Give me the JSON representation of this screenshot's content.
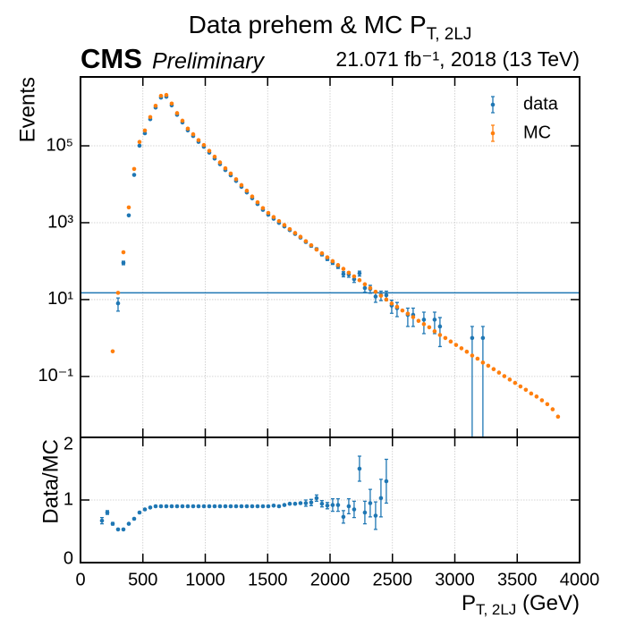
{
  "chart_data": [
    {
      "type": "scatter",
      "title": "Data prehem & MC P",
      "title_subscript": "T, 2LJ",
      "cms_label": "CMS",
      "cms_status": "Preliminary",
      "lumi_text": "21.071 fb⁻¹, 2018 (13 TeV)",
      "ylabel": "Events",
      "log_y": true,
      "grid": true,
      "legend": "upper right",
      "xlim": [
        0,
        4000
      ],
      "ylim": [
        0.0026,
        6200000
      ],
      "yticks": [
        {
          "value": 0.1,
          "label": "10⁻¹"
        },
        {
          "value": 10,
          "label": "10¹"
        },
        {
          "value": 1000,
          "label": "10³"
        },
        {
          "value": 100000,
          "label": "10⁵"
        }
      ],
      "hline": 15,
      "hline_color": "#1f77b4",
      "series": [
        {
          "name": "data",
          "color": "#1f77b4",
          "x": [
            258,
            301,
            344,
            387,
            430,
            473,
            516,
            559,
            602,
            645,
            688,
            731,
            774,
            817,
            860,
            903,
            946,
            989,
            1032,
            1075,
            1118,
            1161,
            1204,
            1247,
            1290,
            1333,
            1376,
            1419,
            1462,
            1505,
            1548,
            1591,
            1634,
            1677,
            1720,
            1763,
            1806,
            1849,
            1892,
            1935,
            1978,
            2021,
            2064,
            2107,
            2150,
            2193,
            2236,
            2279,
            2322,
            2365,
            2408,
            2451,
            2494,
            2537,
            2580,
            2623,
            2666,
            2709,
            2752,
            2795,
            2838,
            2881,
            2924,
            2967,
            3010,
            3053,
            3096,
            3139,
            3182,
            3225,
            3268,
            3311,
            3354,
            3397,
            3440,
            3483,
            3526,
            3569,
            3612,
            3655,
            3698,
            3741,
            3784,
            3827
          ],
          "values": [
            null,
            8,
            90,
            1550,
            17500,
            101000,
            212000,
            493000,
            990000,
            1800000,
            1890000,
            1130000,
            640000,
            405000,
            252000,
            180000,
            127000,
            94500,
            66600,
            46800,
            33300,
            23400,
            17100,
            12200,
            8550,
            6120,
            4320,
            3060,
            2160,
            1620,
            1270,
            990,
            800,
            640,
            510,
            410,
            315,
            250,
            205,
            150,
            115,
            92,
            73,
            46,
            45,
            34,
            48,
            20,
            19,
            12,
            13,
            13,
            7,
            6,
            null,
            4,
            4,
            null,
            3,
            null,
            3,
            2,
            null,
            null,
            null,
            null,
            null,
            1,
            null,
            1,
            null,
            null,
            null,
            null,
            null,
            null,
            null,
            null,
            null,
            null,
            null,
            null,
            null,
            null
          ],
          "errors": [
            null,
            3,
            9.5,
            39,
            132,
            318,
            460,
            700,
            995,
            1340,
            1370,
            1060,
            800,
            636,
            502,
            424,
            356,
            307,
            258,
            216,
            182,
            153,
            131,
            110,
            92,
            78,
            66,
            55,
            46,
            40,
            36,
            31,
            28,
            25,
            23,
            20,
            18,
            16,
            14,
            12,
            11,
            10,
            8.5,
            7,
            7,
            6,
            7,
            4.5,
            4.4,
            3.5,
            3.6,
            3.6,
            2.6,
            2.4,
            null,
            2,
            2,
            null,
            1.7,
            null,
            1.7,
            1.4,
            null,
            null,
            null,
            null,
            null,
            1,
            null,
            1,
            null,
            null,
            null,
            null,
            null,
            null,
            null,
            null,
            null,
            null,
            null,
            null,
            null,
            null
          ]
        },
        {
          "name": "MC",
          "color": "#ff7f0e",
          "x": [
            258,
            301,
            344,
            387,
            430,
            473,
            516,
            559,
            602,
            645,
            688,
            731,
            774,
            817,
            860,
            903,
            946,
            989,
            1032,
            1075,
            1118,
            1161,
            1204,
            1247,
            1290,
            1333,
            1376,
            1419,
            1462,
            1505,
            1548,
            1591,
            1634,
            1677,
            1720,
            1763,
            1806,
            1849,
            1892,
            1935,
            1978,
            2021,
            2064,
            2107,
            2150,
            2193,
            2236,
            2279,
            2322,
            2365,
            2408,
            2451,
            2494,
            2537,
            2580,
            2623,
            2666,
            2709,
            2752,
            2795,
            2838,
            2881,
            2924,
            2967,
            3010,
            3053,
            3096,
            3139,
            3182,
            3225,
            3268,
            3311,
            3354,
            3397,
            3440,
            3483,
            3526,
            3569,
            3612,
            3655,
            3698,
            3741,
            3784,
            3827
          ],
          "values": [
            0.45,
            15,
            170,
            2500,
            25000,
            126000,
            250000,
            560000,
            1100000,
            2000000,
            2100000,
            1260000,
            710000,
            450000,
            280000,
            200000,
            141000,
            105000,
            74000,
            52000,
            37000,
            26000,
            19000,
            13500,
            9500,
            6800,
            4800,
            3400,
            2400,
            1800,
            1400,
            1100,
            870,
            680,
            540,
            430,
            330,
            260,
            200,
            160,
            126,
            100,
            79,
            63,
            50,
            40,
            32,
            25,
            20,
            16,
            12.6,
            10,
            7.9,
            6.5,
            5.2,
            4.3,
            3.5,
            2.8,
            2.3,
            1.9,
            1.5,
            1.2,
            1.0,
            0.81,
            0.66,
            0.54,
            0.44,
            0.35,
            0.29,
            0.23,
            0.19,
            0.155,
            0.126,
            0.102,
            0.083,
            0.068,
            0.055,
            0.045,
            0.036,
            0.03,
            0.024,
            0.019,
            0.014,
            0.009
          ]
        }
      ]
    },
    {
      "type": "scatter",
      "ylabel": "Data/MC",
      "xlabel": "P",
      "xlabel_subscript": "T, 2LJ",
      "xlabel_unit": "(GeV)",
      "grid": true,
      "xlim": [
        0,
        4000
      ],
      "ylim": [
        0,
        2
      ],
      "xticks": [
        0,
        500,
        1000,
        1500,
        2000,
        2500,
        3000,
        3500,
        4000
      ],
      "yticks": [
        0,
        1,
        2
      ],
      "series": [
        {
          "name": "Data/MC",
          "color": "#1f77b4",
          "x": [
            172,
            215,
            258,
            301,
            344,
            387,
            430,
            473,
            516,
            559,
            602,
            645,
            688,
            731,
            774,
            817,
            860,
            903,
            946,
            989,
            1032,
            1075,
            1118,
            1161,
            1204,
            1247,
            1290,
            1333,
            1376,
            1419,
            1462,
            1505,
            1548,
            1591,
            1634,
            1677,
            1720,
            1763,
            1806,
            1849,
            1892,
            1935,
            1978,
            2021,
            2064,
            2107,
            2150,
            2193,
            2236,
            2279,
            2322,
            2365,
            2408,
            2451
          ],
          "values": [
            0.67,
            0.8,
            0.62,
            0.53,
            0.53,
            0.62,
            0.7,
            0.8,
            0.85,
            0.88,
            0.9,
            0.9,
            0.9,
            0.9,
            0.9,
            0.9,
            0.9,
            0.9,
            0.9,
            0.9,
            0.9,
            0.9,
            0.9,
            0.9,
            0.9,
            0.9,
            0.9,
            0.9,
            0.9,
            0.9,
            0.9,
            0.9,
            0.91,
            0.9,
            0.92,
            0.94,
            0.94,
            0.95,
            0.95,
            0.96,
            1.03,
            0.94,
            0.91,
            0.92,
            0.92,
            0.73,
            0.9,
            0.85,
            1.5,
            0.8,
            0.95,
            0.75,
            1.03,
            1.3
          ],
          "errors": [
            0.05,
            0.03,
            0.02,
            0.01,
            0.01,
            0.01,
            0.01,
            0.01,
            0.01,
            0.01,
            0.01,
            0.01,
            0.01,
            0.01,
            0.01,
            0.01,
            0.01,
            0.01,
            0.01,
            0.01,
            0.01,
            0.01,
            0.01,
            0.01,
            0.01,
            0.01,
            0.01,
            0.01,
            0.01,
            0.01,
            0.01,
            0.01,
            0.01,
            0.01,
            0.01,
            0.01,
            0.01,
            0.01,
            0.05,
            0.05,
            0.05,
            0.05,
            0.05,
            0.1,
            0.1,
            0.1,
            0.12,
            0.13,
            0.2,
            0.18,
            0.22,
            0.22,
            0.3,
            0.35
          ]
        }
      ]
    }
  ]
}
